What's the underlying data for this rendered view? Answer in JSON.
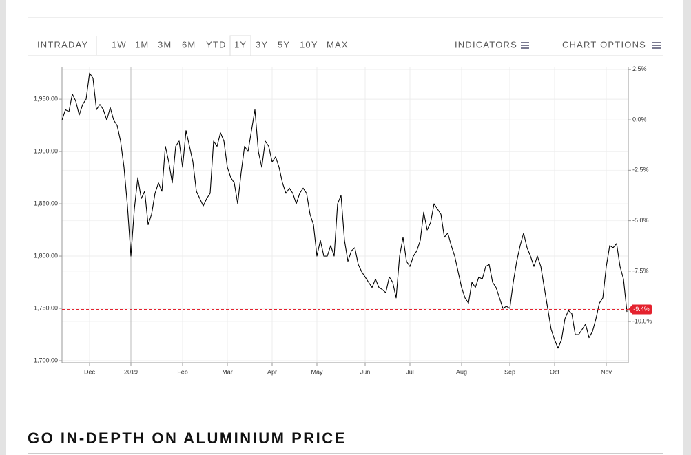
{
  "toolbar": {
    "ranges": [
      "INTRADAY",
      "1W",
      "1M",
      "3M",
      "6M",
      "YTD",
      "1Y",
      "3Y",
      "5Y",
      "10Y",
      "MAX"
    ],
    "selected": "1Y",
    "indicators": "INDICATORS",
    "chart_options": "CHART OPTIONS"
  },
  "heading": "GO IN-DEPTH ON ALUMINIUM PRICE",
  "chart_data": {
    "type": "line",
    "color": "#000000",
    "categories": [
      null,
      null,
      null,
      null,
      null,
      null,
      null,
      null,
      "Dec",
      null,
      null,
      null,
      null,
      null,
      null,
      null,
      null,
      null,
      null,
      null,
      "2019",
      null,
      null,
      null,
      null,
      null,
      null,
      null,
      null,
      null,
      null,
      null,
      null,
      null,
      null,
      "Feb",
      null,
      null,
      null,
      null,
      null,
      null,
      null,
      null,
      null,
      null,
      null,
      null,
      "Mar",
      null,
      null,
      null,
      null,
      null,
      null,
      null,
      null,
      null,
      null,
      null,
      null,
      "Apr",
      null,
      null,
      null,
      null,
      null,
      null,
      null,
      null,
      null,
      null,
      null,
      null,
      "May",
      null,
      null,
      null,
      null,
      null,
      null,
      null,
      null,
      null,
      null,
      null,
      null,
      null,
      "Jun",
      null,
      null,
      null,
      null,
      null,
      null,
      null,
      null,
      null,
      null,
      null,
      null,
      "Jul",
      null,
      null,
      null,
      null,
      null,
      null,
      null,
      null,
      null,
      null,
      null,
      null,
      null,
      null,
      "Aug",
      null,
      null,
      null,
      null,
      null,
      null,
      null,
      null,
      null,
      null,
      null,
      null,
      null,
      "Sep",
      null,
      null,
      null,
      null,
      null,
      null,
      null,
      null,
      null,
      null,
      null,
      null,
      "Oct",
      null,
      null,
      null,
      null,
      null,
      null,
      null,
      null,
      null,
      null,
      null,
      null,
      null,
      null,
      "Nov",
      null,
      null,
      null,
      null,
      null,
      null
    ],
    "values": [
      1930,
      1940,
      1938,
      1955,
      1948,
      1935,
      1945,
      1950,
      1975,
      1970,
      1940,
      1945,
      1940,
      1930,
      1942,
      1930,
      1925,
      1910,
      1885,
      1848,
      1800,
      1845,
      1875,
      1855,
      1862,
      1830,
      1840,
      1860,
      1870,
      1862,
      1905,
      1890,
      1870,
      1905,
      1910,
      1885,
      1920,
      1905,
      1890,
      1862,
      1855,
      1848,
      1855,
      1860,
      1910,
      1905,
      1918,
      1910,
      1885,
      1875,
      1870,
      1850,
      1880,
      1905,
      1900,
      1920,
      1940,
      1900,
      1885,
      1910,
      1905,
      1890,
      1895,
      1885,
      1870,
      1860,
      1865,
      1860,
      1850,
      1860,
      1865,
      1860,
      1840,
      1830,
      1800,
      1815,
      1800,
      1800,
      1810,
      1800,
      1850,
      1858,
      1815,
      1795,
      1805,
      1808,
      1792,
      1785,
      1780,
      1775,
      1770,
      1778,
      1770,
      1768,
      1765,
      1780,
      1775,
      1760,
      1800,
      1818,
      1795,
      1790,
      1800,
      1805,
      1815,
      1842,
      1825,
      1832,
      1850,
      1845,
      1840,
      1818,
      1822,
      1810,
      1800,
      1785,
      1770,
      1760,
      1755,
      1775,
      1770,
      1780,
      1778,
      1790,
      1792,
      1775,
      1770,
      1760,
      1750,
      1752,
      1750,
      1775,
      1795,
      1810,
      1822,
      1808,
      1800,
      1790,
      1800,
      1790,
      1770,
      1750,
      1730,
      1720,
      1712,
      1720,
      1740,
      1748,
      1745,
      1725,
      1725,
      1730,
      1735,
      1722,
      1728,
      1740,
      1755,
      1760,
      1790,
      1810,
      1808,
      1812,
      1790,
      1778,
      1746.7
    ],
    "ylim": [
      1700,
      1981
    ],
    "yticks": [
      {
        "value": 1700,
        "label": "1,700.00"
      },
      {
        "value": 1750,
        "label": "1,750.00"
      },
      {
        "value": 1800,
        "label": "1,800.00"
      },
      {
        "value": 1850,
        "label": "1,850.00"
      },
      {
        "value": 1900,
        "label": "1,900.00"
      },
      {
        "value": 1950,
        "label": "1,950.00"
      }
    ],
    "y2lim": [
      -11.94,
      2.63
    ],
    "y2ticks": [
      {
        "value": 2.5,
        "label": "2.5%"
      },
      {
        "value": 0,
        "label": "0.0%"
      },
      {
        "value": -2.5,
        "label": "-2.5%"
      },
      {
        "value": -5,
        "label": "-5.0%"
      },
      {
        "value": -7.5,
        "label": "-7.5%"
      },
      {
        "value": -10,
        "label": "-10.0%"
      }
    ],
    "current": {
      "value": -9.4,
      "label": "-9.4%",
      "color": "#e4222e"
    },
    "grid": true
  }
}
